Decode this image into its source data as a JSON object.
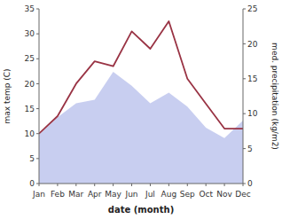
{
  "chart_data": {
    "type": "line",
    "categories": [
      "Jan",
      "Feb",
      "Mar",
      "Apr",
      "May",
      "Jun",
      "Jul",
      "Aug",
      "Sep",
      "Oct",
      "Nov",
      "Dec"
    ],
    "series": [
      {
        "type": "area",
        "color": "#aab4e8",
        "axis": "y2",
        "values": [
          7,
          9.5,
          11.5,
          12,
          16,
          14,
          11.5,
          13,
          11,
          8,
          6.5,
          9
        ]
      },
      {
        "type": "line",
        "color": "#993344",
        "values": [
          10,
          13.5,
          20,
          24.5,
          23.5,
          30.5,
          27,
          32.5,
          21,
          16,
          11,
          11
        ]
      }
    ],
    "xlabel": "date (month)",
    "ylabel": "max temp (C)",
    "y2label": "med. precipitation (kg/m2)",
    "ylim": [
      0,
      35
    ],
    "yticks": [
      0,
      5,
      10,
      15,
      20,
      25,
      30,
      35
    ],
    "y2lim": [
      0,
      25
    ],
    "y2ticks": [
      0,
      5,
      10,
      15,
      20,
      25
    ],
    "grid": false
  }
}
